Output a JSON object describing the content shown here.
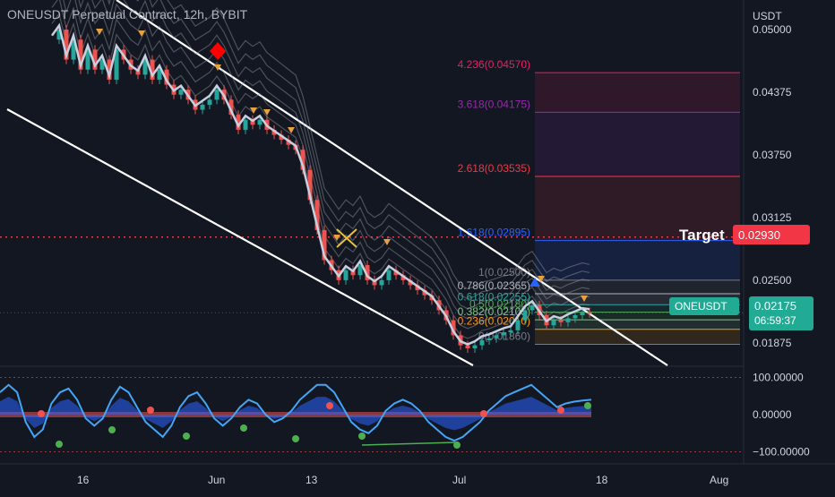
{
  "header": {
    "title": "ONEUSDT Perpetual Contract, 12h, BYBIT"
  },
  "price_axis": {
    "unit": "USDT",
    "ticks": [
      "0.05000",
      "0.04375",
      "0.03750",
      "0.03125",
      "0.02500",
      "0.01875"
    ],
    "tick_values": [
      0.05,
      0.04375,
      0.0375,
      0.03125,
      0.025,
      0.01875
    ]
  },
  "osc_axis": {
    "ticks": [
      "100.00000",
      "0.00000",
      "−100.00000"
    ],
    "tick_values": [
      100,
      0,
      -100
    ]
  },
  "time_axis": {
    "ticks": [
      "16",
      "Jun",
      "13",
      "Jul",
      "18",
      "Aug"
    ]
  },
  "target": {
    "label": "Target",
    "price_label": "0.02930",
    "price": 0.0293,
    "color": "#f23645"
  },
  "last_price": {
    "symbol": "ONEUSDT",
    "price_label": "0.02175",
    "countdown": "06:59:37",
    "price": 0.02175,
    "color": "#22ab94"
  },
  "fib_levels": [
    {
      "label": "4.236(0.04570)",
      "price": 0.0457,
      "color": "#e91e63"
    },
    {
      "label": "3.618(0.04175)",
      "price": 0.04175,
      "color": "#9c27b0"
    },
    {
      "label": "2.618(0.03535)",
      "price": 0.03535,
      "color": "#f23645"
    },
    {
      "label": "1.618(0.02895)",
      "price": 0.02895,
      "color": "#2962ff"
    },
    {
      "label": "1(0.02500)",
      "price": 0.025,
      "color": "#787b86"
    },
    {
      "label": "0.786(0.02365)",
      "price": 0.02365,
      "color": "#b2b5be"
    },
    {
      "label": "0.618(0.02255)",
      "price": 0.02255,
      "color": "#26a69a"
    },
    {
      "label": "0.5(0.02180)",
      "price": 0.0218,
      "color": "#4caf50"
    },
    {
      "label": "0.382(0.02105)",
      "price": 0.02105,
      "color": "#81c784"
    },
    {
      "label": "0.236(0.02010)",
      "price": 0.0201,
      "color": "#ff9800"
    },
    {
      "label": "0(0.01860)",
      "price": 0.0186,
      "color": "#787b86"
    }
  ],
  "chart_data": {
    "type": "candlestick",
    "title": "ONEUSDT Perpetual Contract, 12h, BYBIT",
    "x_ticks": [
      "16",
      "Jun",
      "13",
      "Jul",
      "18",
      "Aug"
    ],
    "ylim": [
      0.0165,
      0.0525
    ],
    "series": [
      {
        "name": "ONEUSDT",
        "kind": "close_path",
        "values": [
          0.049,
          0.05,
          0.047,
          0.049,
          0.046,
          0.048,
          0.046,
          0.047,
          0.045,
          0.048,
          0.047,
          0.046,
          0.0455,
          0.047,
          0.045,
          0.046,
          0.0445,
          0.0435,
          0.044,
          0.043,
          0.042,
          0.0425,
          0.043,
          0.044,
          0.043,
          0.0415,
          0.04,
          0.041,
          0.0405,
          0.041,
          0.04,
          0.0395,
          0.039,
          0.0385,
          0.038,
          0.036,
          0.033,
          0.03,
          0.027,
          0.026,
          0.025,
          0.026,
          0.0255,
          0.0265,
          0.025,
          0.0245,
          0.025,
          0.026,
          0.0255,
          0.025,
          0.0245,
          0.024,
          0.0235,
          0.023,
          0.022,
          0.021,
          0.0195,
          0.0185,
          0.0182,
          0.0185,
          0.019,
          0.0192,
          0.0195,
          0.0198,
          0.02,
          0.021,
          0.022,
          0.0225,
          0.0215,
          0.0205,
          0.021,
          0.0208,
          0.0212,
          0.0215,
          0.0218,
          0.0217
        ]
      }
    ]
  },
  "oscillator": {
    "ticks": [
      "100.00000",
      "0.00000",
      "−100.00000"
    ],
    "line_values": [
      60,
      80,
      60,
      -20,
      -60,
      -40,
      30,
      60,
      70,
      40,
      -10,
      -30,
      -10,
      40,
      75,
      60,
      20,
      -20,
      -40,
      -60,
      -30,
      20,
      50,
      60,
      30,
      -10,
      -30,
      -10,
      20,
      40,
      30,
      0,
      -20,
      -10,
      10,
      40,
      60,
      80,
      80,
      60,
      20,
      -20,
      -40,
      -50,
      -30,
      10,
      30,
      40,
      30,
      10,
      -20,
      -40,
      -60,
      -70,
      -60,
      -40,
      -20,
      10,
      30,
      50,
      60,
      70,
      80,
      60,
      40,
      20,
      30,
      35,
      38,
      40
    ]
  }
}
